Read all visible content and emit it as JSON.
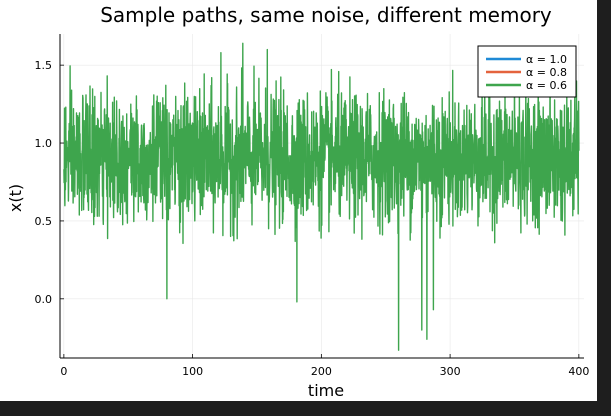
{
  "chart_data": {
    "type": "line",
    "title": "Sample paths, same noise, different memory",
    "xlabel": "time",
    "ylabel": "x(t)",
    "xlim": [
      -3,
      404
    ],
    "ylim": [
      -0.38,
      1.7
    ],
    "xticks": [
      0,
      100,
      200,
      300,
      400
    ],
    "xtick_labels": [
      "0",
      "100",
      "200",
      "300",
      "400"
    ],
    "yticks": [
      0.0,
      0.5,
      1.0,
      1.5
    ],
    "ytick_labels": [
      "0.0",
      "0.5",
      "1.0",
      "1.5"
    ],
    "grid": true,
    "legend_position": "top-right",
    "series": [
      {
        "name": "α = 1.0",
        "color": "#1f8ad6",
        "values": [
          0.9,
          0.92,
          0.88,
          0.95,
          0.91,
          0.87,
          0.93,
          0.9
        ]
      },
      {
        "name": "α = 0.8",
        "color": "#e4633d",
        "values": [
          0.9,
          0.91,
          0.89,
          0.94,
          0.9,
          0.88,
          0.92,
          0.9
        ]
      },
      {
        "name": "α = 0.6",
        "color": "#3ea54d",
        "x_range": [
          0,
          400
        ],
        "mean": 0.9,
        "typical_range": [
          0.45,
          1.45
        ],
        "max": 1.64,
        "min": -0.33,
        "notable_dips": [
          {
            "x": 80,
            "y": 0.0
          },
          {
            "x": 181,
            "y": -0.02
          },
          {
            "x": 260,
            "y": -0.33
          },
          {
            "x": 278,
            "y": -0.2
          },
          {
            "x": 282,
            "y": -0.26
          },
          {
            "x": 287,
            "y": -0.07
          }
        ],
        "notable_peaks": [
          {
            "x": 139,
            "y": 1.64
          },
          {
            "x": 122,
            "y": 1.58
          },
          {
            "x": 158,
            "y": 1.6
          },
          {
            "x": 350,
            "y": 1.55
          }
        ]
      }
    ]
  }
}
